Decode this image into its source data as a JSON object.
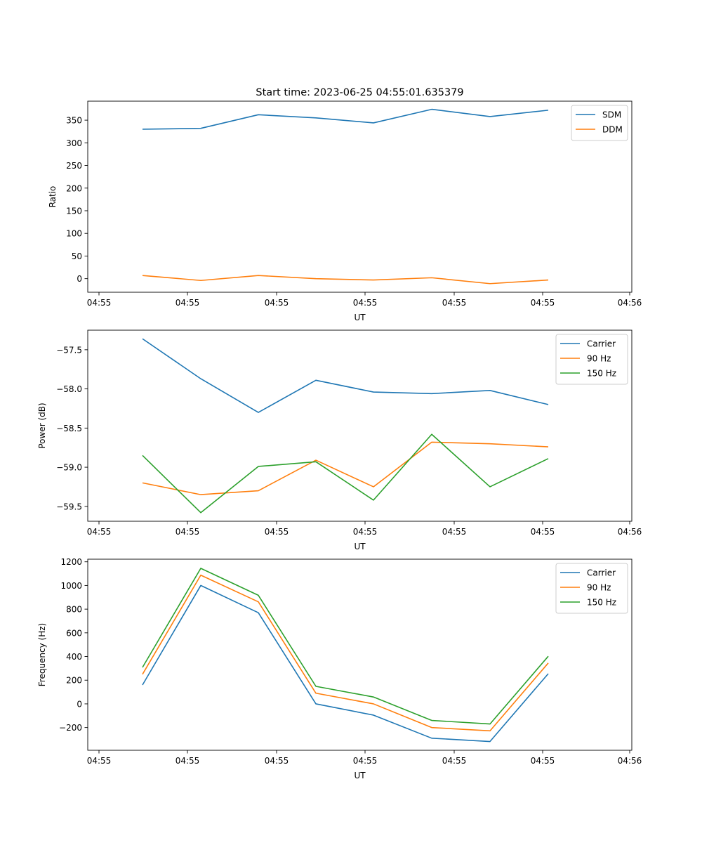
{
  "figure_title": "Start time: 2023-06-25 04:55:01.635379",
  "colors": {
    "blue": "#1f77b4",
    "orange": "#ff7f0e",
    "green": "#2ca02c"
  },
  "chart_data": [
    {
      "type": "line",
      "title": "Start time: 2023-06-25 04:55:01.635379",
      "xlabel": "UT",
      "ylabel": "Ratio",
      "x_tick_labels": [
        "04:55",
        "04:55",
        "04:55",
        "04:55",
        "04:55",
        "04:55",
        "04:55",
        "04:56"
      ],
      "y_ticks": [
        0,
        50,
        100,
        150,
        200,
        250,
        300,
        350
      ],
      "y_tick_labels": [
        "0",
        "50",
        "100",
        "150",
        "200",
        "250",
        "300",
        "350"
      ],
      "ylim": [
        -30,
        392
      ],
      "legend_position": "top-right",
      "grid": false,
      "series": [
        {
          "name": "SDM",
          "color": "#1f77b4",
          "values": [
            330,
            332,
            362,
            355,
            344,
            374,
            358,
            372
          ]
        },
        {
          "name": "DDM",
          "color": "#ff7f0e",
          "values": [
            7,
            -4,
            7,
            0,
            -3,
            2,
            -11,
            -3
          ]
        }
      ]
    },
    {
      "type": "line",
      "title": "",
      "xlabel": "UT",
      "ylabel": "Power (dB)",
      "x_tick_labels": [
        "04:55",
        "04:55",
        "04:55",
        "04:55",
        "04:55",
        "04:55",
        "04:55",
        "04:56"
      ],
      "y_ticks": [
        -57.5,
        -58.0,
        -58.5,
        -59.0,
        -59.5
      ],
      "y_tick_labels": [
        "−57.5",
        "−58.0",
        "−58.5",
        "−59.0",
        "−59.5"
      ],
      "ylim": [
        -59.69,
        -57.25
      ],
      "legend_position": "top-right",
      "grid": false,
      "series": [
        {
          "name": "Carrier",
          "color": "#1f77b4",
          "values": [
            -57.36,
            -57.87,
            -58.3,
            -57.89,
            -58.04,
            -58.06,
            -58.02,
            -58.2
          ]
        },
        {
          "name": "90 Hz",
          "color": "#ff7f0e",
          "values": [
            -59.2,
            -59.35,
            -59.3,
            -58.91,
            -59.25,
            -58.68,
            -58.7,
            -58.74
          ]
        },
        {
          "name": "150 Hz",
          "color": "#2ca02c",
          "values": [
            -58.85,
            -59.58,
            -58.99,
            -58.93,
            -59.42,
            -58.58,
            -59.25,
            -58.89
          ]
        }
      ]
    },
    {
      "type": "line",
      "title": "",
      "xlabel": "UT",
      "ylabel": "Frequency (Hz)",
      "x_tick_labels": [
        "04:55",
        "04:55",
        "04:55",
        "04:55",
        "04:55",
        "04:55",
        "04:55",
        "04:56"
      ],
      "y_ticks": [
        -200,
        0,
        200,
        400,
        600,
        800,
        1000,
        1200
      ],
      "y_tick_labels": [
        "−200",
        "0",
        "200",
        "400",
        "600",
        "800",
        "1000",
        "1200"
      ],
      "ylim": [
        -392,
        1222
      ],
      "legend_position": "top-right",
      "grid": false,
      "series": [
        {
          "name": "Carrier",
          "color": "#1f77b4",
          "values": [
            160,
            1000,
            770,
            0,
            -95,
            -290,
            -318,
            255
          ]
        },
        {
          "name": "90 Hz",
          "color": "#ff7f0e",
          "values": [
            250,
            1087,
            862,
            90,
            0,
            -200,
            -228,
            345
          ]
        },
        {
          "name": "150 Hz",
          "color": "#2ca02c",
          "values": [
            308,
            1145,
            917,
            148,
            58,
            -140,
            -170,
            402
          ]
        }
      ]
    }
  ]
}
